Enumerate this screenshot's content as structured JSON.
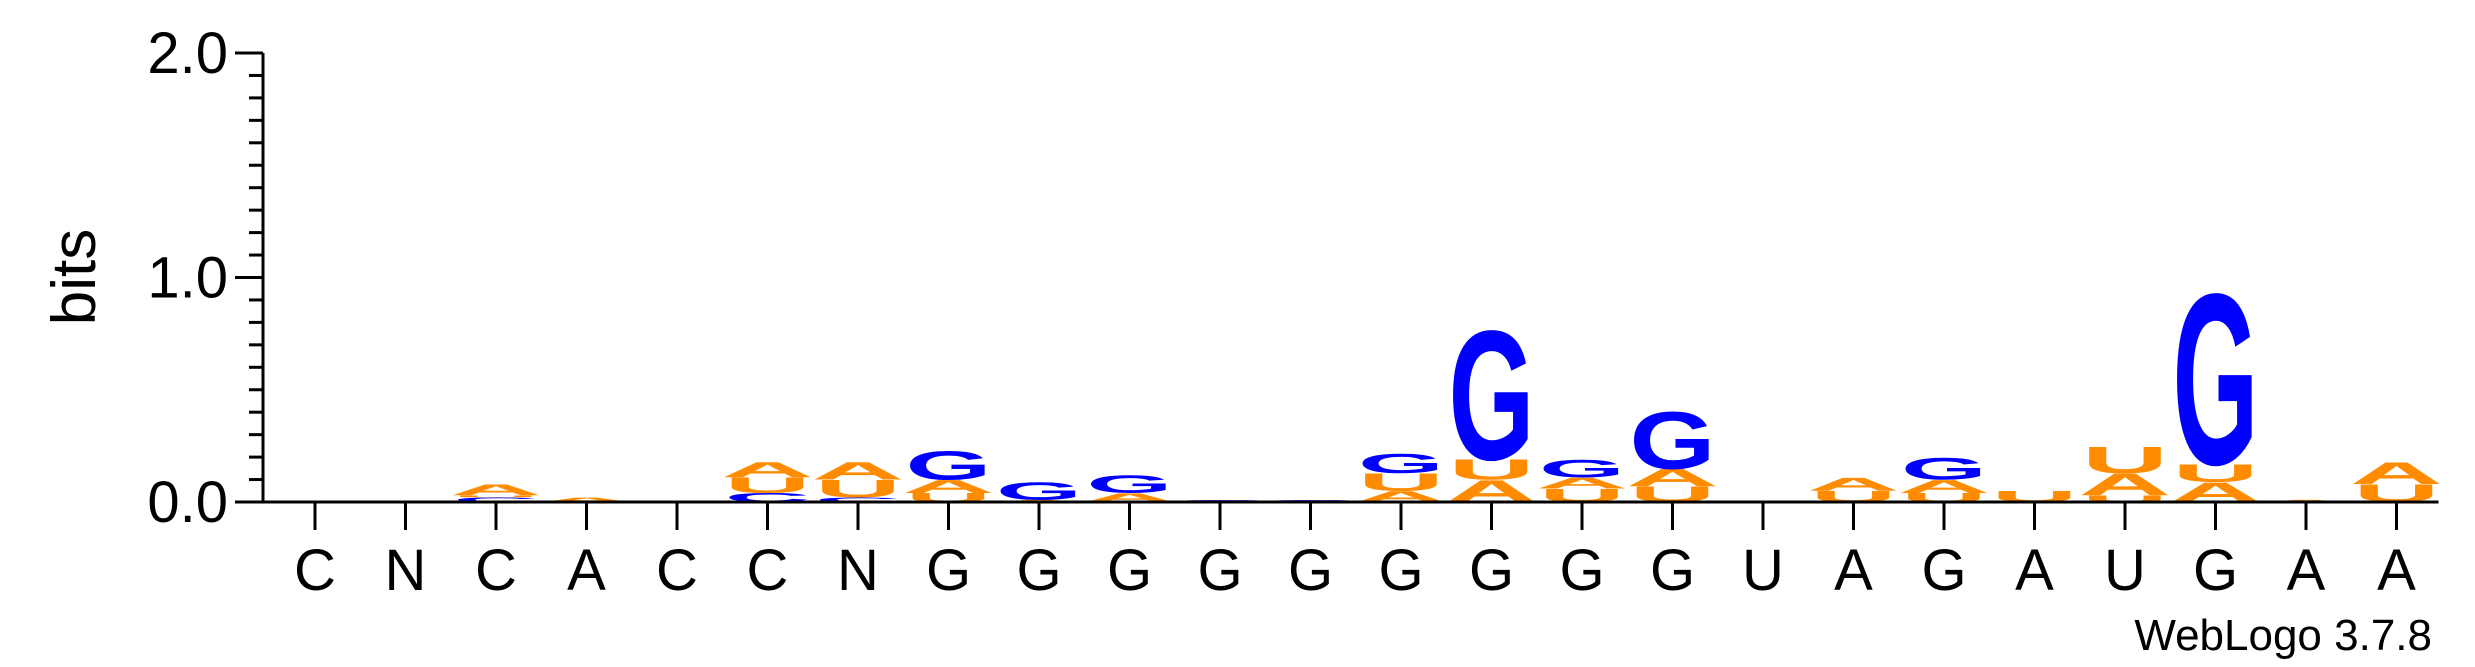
{
  "chart_data": {
    "type": "sequence-logo",
    "ylabel": "bits",
    "ylim": [
      0,
      2.0
    ],
    "yticks": [
      "0.0",
      "1.0",
      "2.0"
    ],
    "x_labels": [
      "C",
      "N",
      "C",
      "A",
      "C",
      "C",
      "N",
      "G",
      "G",
      "G",
      "G",
      "G",
      "G",
      "G",
      "G",
      "G",
      "U",
      "A",
      "G",
      "A",
      "U",
      "G",
      "A",
      "A"
    ],
    "colors": {
      "A": "#ff8c00",
      "U": "#ff8c00",
      "G": "#0000ff",
      "C": "#0000ff"
    },
    "stacks": [
      [],
      [],
      [
        {
          "l": "C",
          "h": 0.02
        },
        {
          "l": "U",
          "h": 0.01
        },
        {
          "l": "A",
          "h": 0.05
        }
      ],
      [
        {
          "l": "A",
          "h": 0.02
        }
      ],
      [],
      [
        {
          "l": "C",
          "h": 0.04
        },
        {
          "l": "U",
          "h": 0.07
        },
        {
          "l": "A",
          "h": 0.07
        }
      ],
      [
        {
          "l": "C",
          "h": 0.02
        },
        {
          "l": "U",
          "h": 0.08
        },
        {
          "l": "A",
          "h": 0.08
        }
      ],
      [
        {
          "l": "U",
          "h": 0.04
        },
        {
          "l": "A",
          "h": 0.06
        },
        {
          "l": "G",
          "h": 0.13
        }
      ],
      [
        {
          "l": "A",
          "h": 0.01
        },
        {
          "l": "G",
          "h": 0.08
        }
      ],
      [
        {
          "l": "A",
          "h": 0.04
        },
        {
          "l": "G",
          "h": 0.08
        }
      ],
      [
        {
          "l": "C",
          "h": 0.01
        }
      ],
      [
        {
          "l": "C",
          "h": 0.01
        }
      ],
      [
        {
          "l": "A",
          "h": 0.05
        },
        {
          "l": "U",
          "h": 0.08
        },
        {
          "l": "G",
          "h": 0.09
        }
      ],
      [
        {
          "l": "A",
          "h": 0.1
        },
        {
          "l": "U",
          "h": 0.09
        },
        {
          "l": "G",
          "h": 0.59
        }
      ],
      [
        {
          "l": "U",
          "h": 0.06
        },
        {
          "l": "A",
          "h": 0.05
        },
        {
          "l": "G",
          "h": 0.08
        }
      ],
      [
        {
          "l": "U",
          "h": 0.07
        },
        {
          "l": "A",
          "h": 0.08
        },
        {
          "l": "G",
          "h": 0.26
        }
      ],
      [],
      [
        {
          "l": "U",
          "h": 0.05
        },
        {
          "l": "A",
          "h": 0.06
        }
      ],
      [
        {
          "l": "U",
          "h": 0.04
        },
        {
          "l": "A",
          "h": 0.06
        },
        {
          "l": "G",
          "h": 0.1
        }
      ],
      [
        {
          "l": "U",
          "h": 0.05
        }
      ],
      [
        {
          "l": "U",
          "h": 0.03
        },
        {
          "l": "A",
          "h": 0.1
        },
        {
          "l": "U",
          "h": 0.12
        }
      ],
      [
        {
          "l": "A",
          "h": 0.09
        },
        {
          "l": "U",
          "h": 0.08
        },
        {
          "l": "G",
          "h": 0.78
        }
      ],
      [
        {
          "l": "A",
          "h": 0.01
        }
      ],
      [
        {
          "l": "U",
          "h": 0.08
        },
        {
          "l": "A",
          "h": 0.1
        }
      ]
    ]
  },
  "credit": "WebLogo 3.7.8"
}
